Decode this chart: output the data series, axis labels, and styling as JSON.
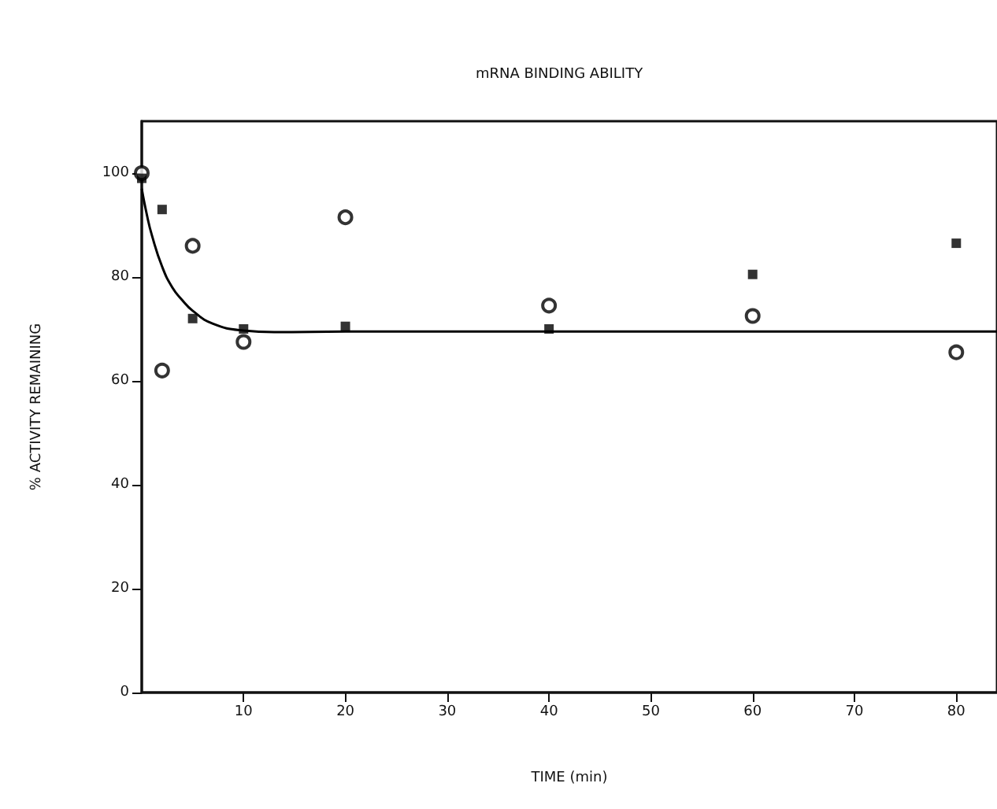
{
  "chart_data": {
    "type": "scatter",
    "title": "mRNA BINDING ABILITY",
    "xlabel": "TIME (min)",
    "ylabel": "% ACTIVITY REMAINING",
    "xlim": [
      0,
      84
    ],
    "xticks": [
      10,
      20,
      30,
      40,
      50,
      60,
      70,
      80
    ],
    "ylim": [
      0,
      110
    ],
    "yticks": [
      0,
      20,
      40,
      60,
      80,
      100
    ],
    "grid": false,
    "series": [
      {
        "marker": "square",
        "color": "#000000",
        "x": [
          0,
          2,
          5,
          10,
          20,
          40,
          60,
          80
        ],
        "values": [
          99,
          93,
          72,
          70,
          70.5,
          70,
          80.5,
          86.5
        ]
      },
      {
        "marker": "circle",
        "color": "#000000",
        "x": [
          0,
          2,
          5,
          10,
          20,
          40,
          60,
          80
        ],
        "values": [
          100,
          62,
          86,
          67.5,
          91.5,
          74.5,
          72.5,
          65.5
        ]
      },
      {
        "type": "line",
        "marker": "none",
        "color": "#000000",
        "x": [
          0,
          0.5,
          1,
          2,
          3,
          4,
          5,
          7,
          10,
          13,
          20,
          40,
          60,
          84
        ],
        "values": [
          97,
          92,
          88,
          82,
          78,
          75.5,
          73.5,
          71,
          69.7,
          69.4,
          69.5,
          69.5,
          69.5,
          69.5
        ]
      }
    ]
  }
}
